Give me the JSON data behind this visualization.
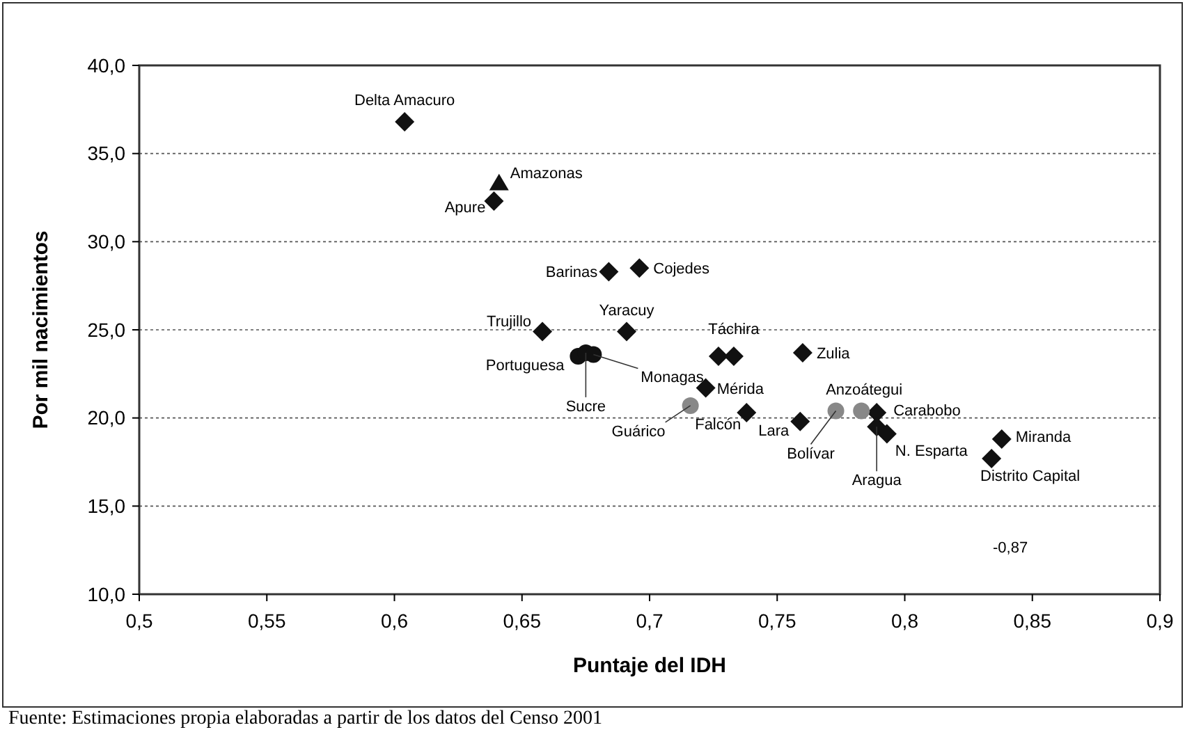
{
  "chart_data": {
    "type": "scatter",
    "xlabel": "Puntaje del IDH",
    "ylabel": "Por mil nacimientos",
    "xlim": [
      0.5,
      0.9
    ],
    "xticks": [
      {
        "value": 0.5,
        "label": "0,5"
      },
      {
        "value": 0.55,
        "label": "0,55"
      },
      {
        "value": 0.6,
        "label": "0,6"
      },
      {
        "value": 0.65,
        "label": "0,65"
      },
      {
        "value": 0.7,
        "label": "0,7"
      },
      {
        "value": 0.75,
        "label": "0,75"
      },
      {
        "value": 0.8,
        "label": "0,8"
      },
      {
        "value": 0.85,
        "label": "0,85"
      },
      {
        "value": 0.9,
        "label": "0,9"
      }
    ],
    "ylim": [
      10,
      40
    ],
    "yticks": [
      {
        "value": 10,
        "label": "10,0"
      },
      {
        "value": 15,
        "label": "15,0"
      },
      {
        "value": 20,
        "label": "20,0"
      },
      {
        "value": 25,
        "label": "25,0"
      },
      {
        "value": 30,
        "label": "30,0"
      },
      {
        "value": 35,
        "label": "35,0"
      },
      {
        "value": 40,
        "label": "40,0"
      }
    ],
    "grid": "y",
    "series": [
      {
        "color": "#111111",
        "marker": "diamond",
        "x": [
          0.604,
          0.639,
          0.684,
          0.696,
          0.658,
          0.691,
          0.727,
          0.733,
          0.722,
          0.738,
          0.76,
          0.759,
          0.789,
          0.789,
          0.793,
          0.838,
          0.834
        ],
        "values": [
          36.8,
          32.3,
          28.3,
          28.5,
          24.9,
          24.9,
          23.5,
          23.5,
          21.7,
          20.3,
          23.7,
          19.8,
          20.3,
          19.5,
          19.1,
          18.8,
          17.7
        ]
      },
      {
        "color": "#111111",
        "marker": "circle",
        "x": [
          0.672,
          0.675,
          0.678
        ],
        "values": [
          23.5,
          23.7,
          23.6
        ]
      },
      {
        "color": "#111111",
        "marker": "triangle",
        "x": [
          0.641
        ],
        "values": [
          33.3
        ]
      },
      {
        "color": "#888888",
        "marker": "circle",
        "x": [
          0.716,
          0.773,
          0.783
        ],
        "values": [
          20.7,
          20.4,
          20.4
        ]
      }
    ],
    "annotations": [
      {
        "text": "Delta Amacuro",
        "x": 0.604,
        "y": 36.8
      },
      {
        "text": "Amazonas",
        "x": 0.641,
        "y": 33.3
      },
      {
        "text": "Apure",
        "x": 0.639,
        "y": 32.3
      },
      {
        "text": "Barinas",
        "x": 0.684,
        "y": 28.3
      },
      {
        "text": "Cojedes",
        "x": 0.696,
        "y": 28.5
      },
      {
        "text": "Trujillo",
        "x": 0.658,
        "y": 24.9
      },
      {
        "text": "Yaracuy",
        "x": 0.691,
        "y": 24.9
      },
      {
        "text": "Monagas",
        "x": 0.678,
        "y": 23.6
      },
      {
        "text": "Portuguesa",
        "x": 0.672,
        "y": 23.5
      },
      {
        "text": "Sucre",
        "x": 0.675,
        "y": 23.7
      },
      {
        "text": "Táchira",
        "x": 0.733,
        "y": 23.5
      },
      {
        "text": "Mérida",
        "x": 0.722,
        "y": 21.7
      },
      {
        "text": "Guárico",
        "x": 0.716,
        "y": 20.7
      },
      {
        "text": "Falcón",
        "x": 0.738,
        "y": 20.3
      },
      {
        "text": "Zulia",
        "x": 0.76,
        "y": 23.7
      },
      {
        "text": "Lara",
        "x": 0.759,
        "y": 19.8
      },
      {
        "text": "Bolívar",
        "x": 0.773,
        "y": 20.4
      },
      {
        "text": "Anzoátegui",
        "x": 0.783,
        "y": 20.4
      },
      {
        "text": "Carabobo",
        "x": 0.789,
        "y": 20.3
      },
      {
        "text": "Aragua",
        "x": 0.789,
        "y": 19.5
      },
      {
        "text": "N. Esparta",
        "x": 0.793,
        "y": 19.1
      },
      {
        "text": "Miranda",
        "x": 0.838,
        "y": 18.8
      },
      {
        "text": "Distrito Capital",
        "x": 0.834,
        "y": 17.7
      },
      "-0,87",
      "Fuente: Estimaciones propia elaboradas a partir de los datos del Censo 2001"
    ]
  }
}
